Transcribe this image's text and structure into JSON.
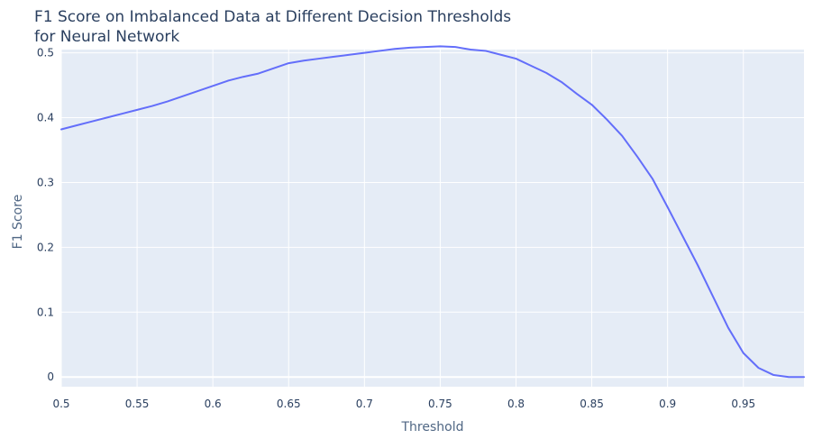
{
  "chart_data": {
    "type": "line",
    "title": "F1 Score on Imbalanced Data at Different Decision Thresholds",
    "subtitle": "for Neural Network",
    "xlabel": "Threshold",
    "ylabel": "F1 Score",
    "xlim": [
      0.5,
      0.99
    ],
    "ylim": [
      -0.015,
      0.505
    ],
    "xticks": [
      0.5,
      0.55,
      0.6,
      0.65,
      0.7,
      0.75,
      0.8,
      0.85,
      0.9,
      0.95
    ],
    "xtick_labels": [
      "0.5",
      "0.55",
      "0.6",
      "0.65",
      "0.7",
      "0.75",
      "0.8",
      "0.85",
      "0.9",
      "0.95"
    ],
    "yticks": [
      0,
      0.1,
      0.2,
      0.3,
      0.4,
      0.5
    ],
    "ytick_labels": [
      "0",
      "0.1",
      "0.2",
      "0.3",
      "0.4",
      "0.5"
    ],
    "grid": true,
    "background_color": "#e5ecf6",
    "grid_color": "#ffffff",
    "line_color": "#636efa",
    "series": [
      {
        "x": [
          0.5,
          0.51,
          0.52,
          0.53,
          0.54,
          0.55,
          0.56,
          0.57,
          0.58,
          0.59,
          0.6,
          0.61,
          0.62,
          0.63,
          0.64,
          0.65,
          0.66,
          0.67,
          0.68,
          0.69,
          0.7,
          0.71,
          0.72,
          0.73,
          0.74,
          0.75,
          0.76,
          0.77,
          0.78,
          0.79,
          0.8,
          0.81,
          0.82,
          0.83,
          0.84,
          0.85,
          0.86,
          0.87,
          0.88,
          0.89,
          0.9,
          0.91,
          0.92,
          0.93,
          0.94,
          0.95,
          0.96,
          0.97,
          0.98,
          0.99
        ],
        "y": [
          0.382,
          0.388,
          0.394,
          0.4,
          0.406,
          0.412,
          0.418,
          0.425,
          0.433,
          0.441,
          0.449,
          0.457,
          0.463,
          0.468,
          0.476,
          0.484,
          0.488,
          0.491,
          0.494,
          0.497,
          0.5,
          0.503,
          0.506,
          0.508,
          0.509,
          0.51,
          0.509,
          0.505,
          0.503,
          0.497,
          0.491,
          0.48,
          0.469,
          0.455,
          0.437,
          0.42,
          0.397,
          0.372,
          0.34,
          0.306,
          0.262,
          0.217,
          0.172,
          0.124,
          0.076,
          0.037,
          0.014,
          0.003,
          0.0,
          0.0
        ]
      }
    ]
  }
}
